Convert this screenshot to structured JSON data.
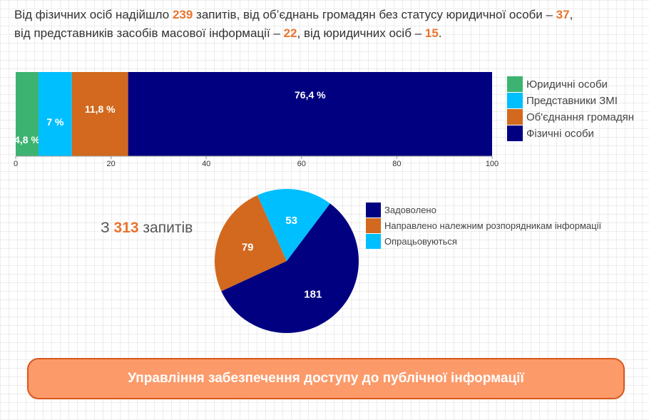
{
  "intro": {
    "l1a": "Від фізичних осіб надійшло ",
    "n1": "239",
    "l1b": " запитів, від об’єднань громадян без статусу юридичної особи – ",
    "n2": "37",
    "l1c": ",",
    "l2a": "від представників засобів масової інформації –  ",
    "n3": "22",
    "l2b": ", від юридичних осіб – ",
    "n4": "15",
    "l2c": "."
  },
  "total": {
    "prefix": "З ",
    "value": "313",
    "suffix": " запитів"
  },
  "button": {
    "label": "Управління забезпечення доступу до публічної інформації"
  },
  "chart_data": [
    {
      "type": "bar",
      "stacked": true,
      "orientation": "horizontal",
      "xlim": [
        0,
        100
      ],
      "ticks": [
        0,
        20,
        40,
        60,
        80,
        100
      ],
      "series": [
        {
          "name": "Юридичні особи",
          "value": 4.8,
          "label": "4,8 %",
          "color": "#3cb371"
        },
        {
          "name": "Представники ЗМІ",
          "value": 7,
          "label": "7 %",
          "color": "#00bfff"
        },
        {
          "name": "Об'єднання громадян",
          "value": 11.8,
          "label": "11,8 %",
          "color": "#d2691e"
        },
        {
          "name": "Фізичні особи",
          "value": 76.4,
          "label": "76,4 %",
          "color": "#000080"
        }
      ],
      "legend": "right"
    },
    {
      "type": "pie",
      "slices": [
        {
          "name": "Задоволено",
          "value": 181,
          "color": "#000080"
        },
        {
          "name": "Направлено належним розпорядникам інформації",
          "value": 79,
          "color": "#d2691e"
        },
        {
          "name": "Опрацьовуються",
          "value": 53,
          "color": "#00bfff"
        }
      ],
      "legend": "right"
    }
  ]
}
